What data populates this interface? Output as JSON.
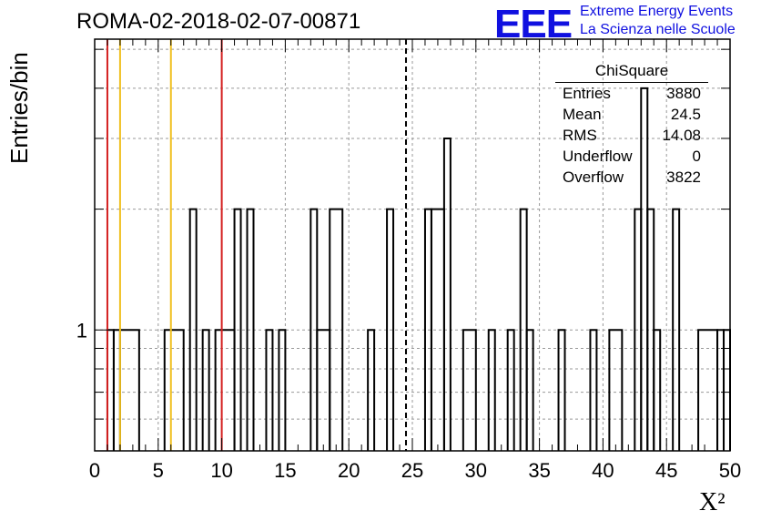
{
  "header": {
    "run_title": "ROMA-02-2018-02-07-00871",
    "logo_text": "EEE",
    "logo_line1": "Extreme Energy Events",
    "logo_line2": "La Scienza nelle Scuole",
    "logo_color": "#1010e0"
  },
  "stats_box": {
    "title": "ChiSquare",
    "rows": [
      {
        "label": "Entries",
        "value": "3880"
      },
      {
        "label": "Mean",
        "value": "24.5"
      },
      {
        "label": "RMS",
        "value": "14.08"
      },
      {
        "label": "Underflow",
        "value": "0"
      },
      {
        "label": "Overflow",
        "value": "3822"
      }
    ]
  },
  "chart_data": {
    "type": "bar",
    "histogram": true,
    "ylabel": "Entries/bin",
    "xlabel": "X²",
    "xlim": [
      0,
      50
    ],
    "ylim": [
      0.5,
      5.3
    ],
    "ylog": true,
    "grid": true,
    "x_ticks": [
      "0",
      "5",
      "10",
      "15",
      "20",
      "25",
      "30",
      "35",
      "40",
      "45",
      "50"
    ],
    "y_ticks": [
      "1"
    ],
    "bins": [
      [
        1,
        1.5,
        1
      ],
      [
        1.5,
        2,
        1
      ],
      [
        2,
        3.5,
        1
      ],
      [
        5.5,
        7,
        1
      ],
      [
        7.5,
        8,
        2
      ],
      [
        8.5,
        9,
        1
      ],
      [
        9.5,
        11,
        1
      ],
      [
        11,
        11.5,
        2
      ],
      [
        12,
        12.5,
        2
      ],
      [
        13.5,
        14,
        1
      ],
      [
        14.5,
        15,
        1
      ],
      [
        17,
        17.5,
        2
      ],
      [
        17.5,
        18.5,
        1
      ],
      [
        18.5,
        19.5,
        2
      ],
      [
        21.5,
        22,
        1
      ],
      [
        23,
        23.5,
        2
      ],
      [
        26,
        26.5,
        2
      ],
      [
        26.5,
        27.5,
        2
      ],
      [
        27.5,
        28,
        3
      ],
      [
        29,
        30,
        1
      ],
      [
        31,
        31.5,
        1
      ],
      [
        32.5,
        33,
        1
      ],
      [
        33.5,
        34,
        2
      ],
      [
        34,
        34.5,
        1
      ],
      [
        36.5,
        37,
        1
      ],
      [
        39,
        39.5,
        1
      ],
      [
        40.5,
        41.5,
        1
      ],
      [
        42.5,
        43,
        2
      ],
      [
        43,
        43.5,
        4
      ],
      [
        43.5,
        44,
        2
      ],
      [
        44,
        44.5,
        1
      ],
      [
        45.5,
        46,
        2
      ],
      [
        47.5,
        49,
        1
      ],
      [
        49,
        49.5,
        1
      ],
      [
        49.5,
        50,
        1
      ]
    ],
    "vertical_lines": [
      {
        "x": 1,
        "color": "#d42020",
        "style": "solid"
      },
      {
        "x": 2,
        "color": "#f0c020",
        "style": "solid"
      },
      {
        "x": 6,
        "color": "#f0c020",
        "style": "solid"
      },
      {
        "x": 10,
        "color": "#d42020",
        "style": "solid"
      },
      {
        "x": 24.5,
        "color": "#000000",
        "style": "dashed"
      }
    ]
  }
}
